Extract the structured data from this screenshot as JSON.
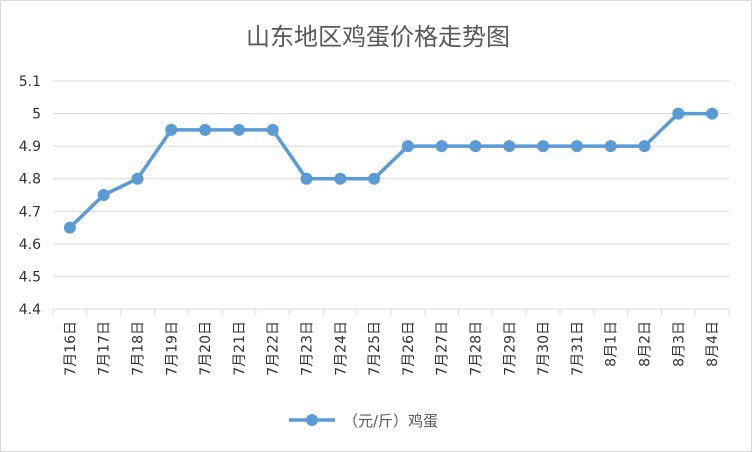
{
  "chart_data": {
    "type": "line",
    "title": "山东地区鸡蛋价格走势图",
    "xlabel": "",
    "ylabel": "",
    "categories": [
      "7月16日",
      "7月17日",
      "7月18日",
      "7月19日",
      "7月20日",
      "7月21日",
      "7月22日",
      "7月23日",
      "7月24日",
      "7月25日",
      "7月26日",
      "7月27日",
      "7月28日",
      "7月29日",
      "7月30日",
      "7月31日",
      "8月1日",
      "8月2日",
      "8月3日",
      "8月4日"
    ],
    "series": [
      {
        "name": "（元/斤）鸡蛋",
        "color": "#5b9bd5",
        "values": [
          4.65,
          4.75,
          4.8,
          4.95,
          4.95,
          4.95,
          4.95,
          4.8,
          4.8,
          4.8,
          4.9,
          4.9,
          4.9,
          4.9,
          4.9,
          4.9,
          4.9,
          4.9,
          5.0,
          5.0
        ]
      }
    ],
    "ylim": [
      4.4,
      5.1
    ],
    "yticks": [
      "4.4",
      "4.5",
      "4.6",
      "4.7",
      "4.8",
      "4.9",
      "5",
      "5.1"
    ],
    "grid": true,
    "legend_position": "bottom"
  }
}
